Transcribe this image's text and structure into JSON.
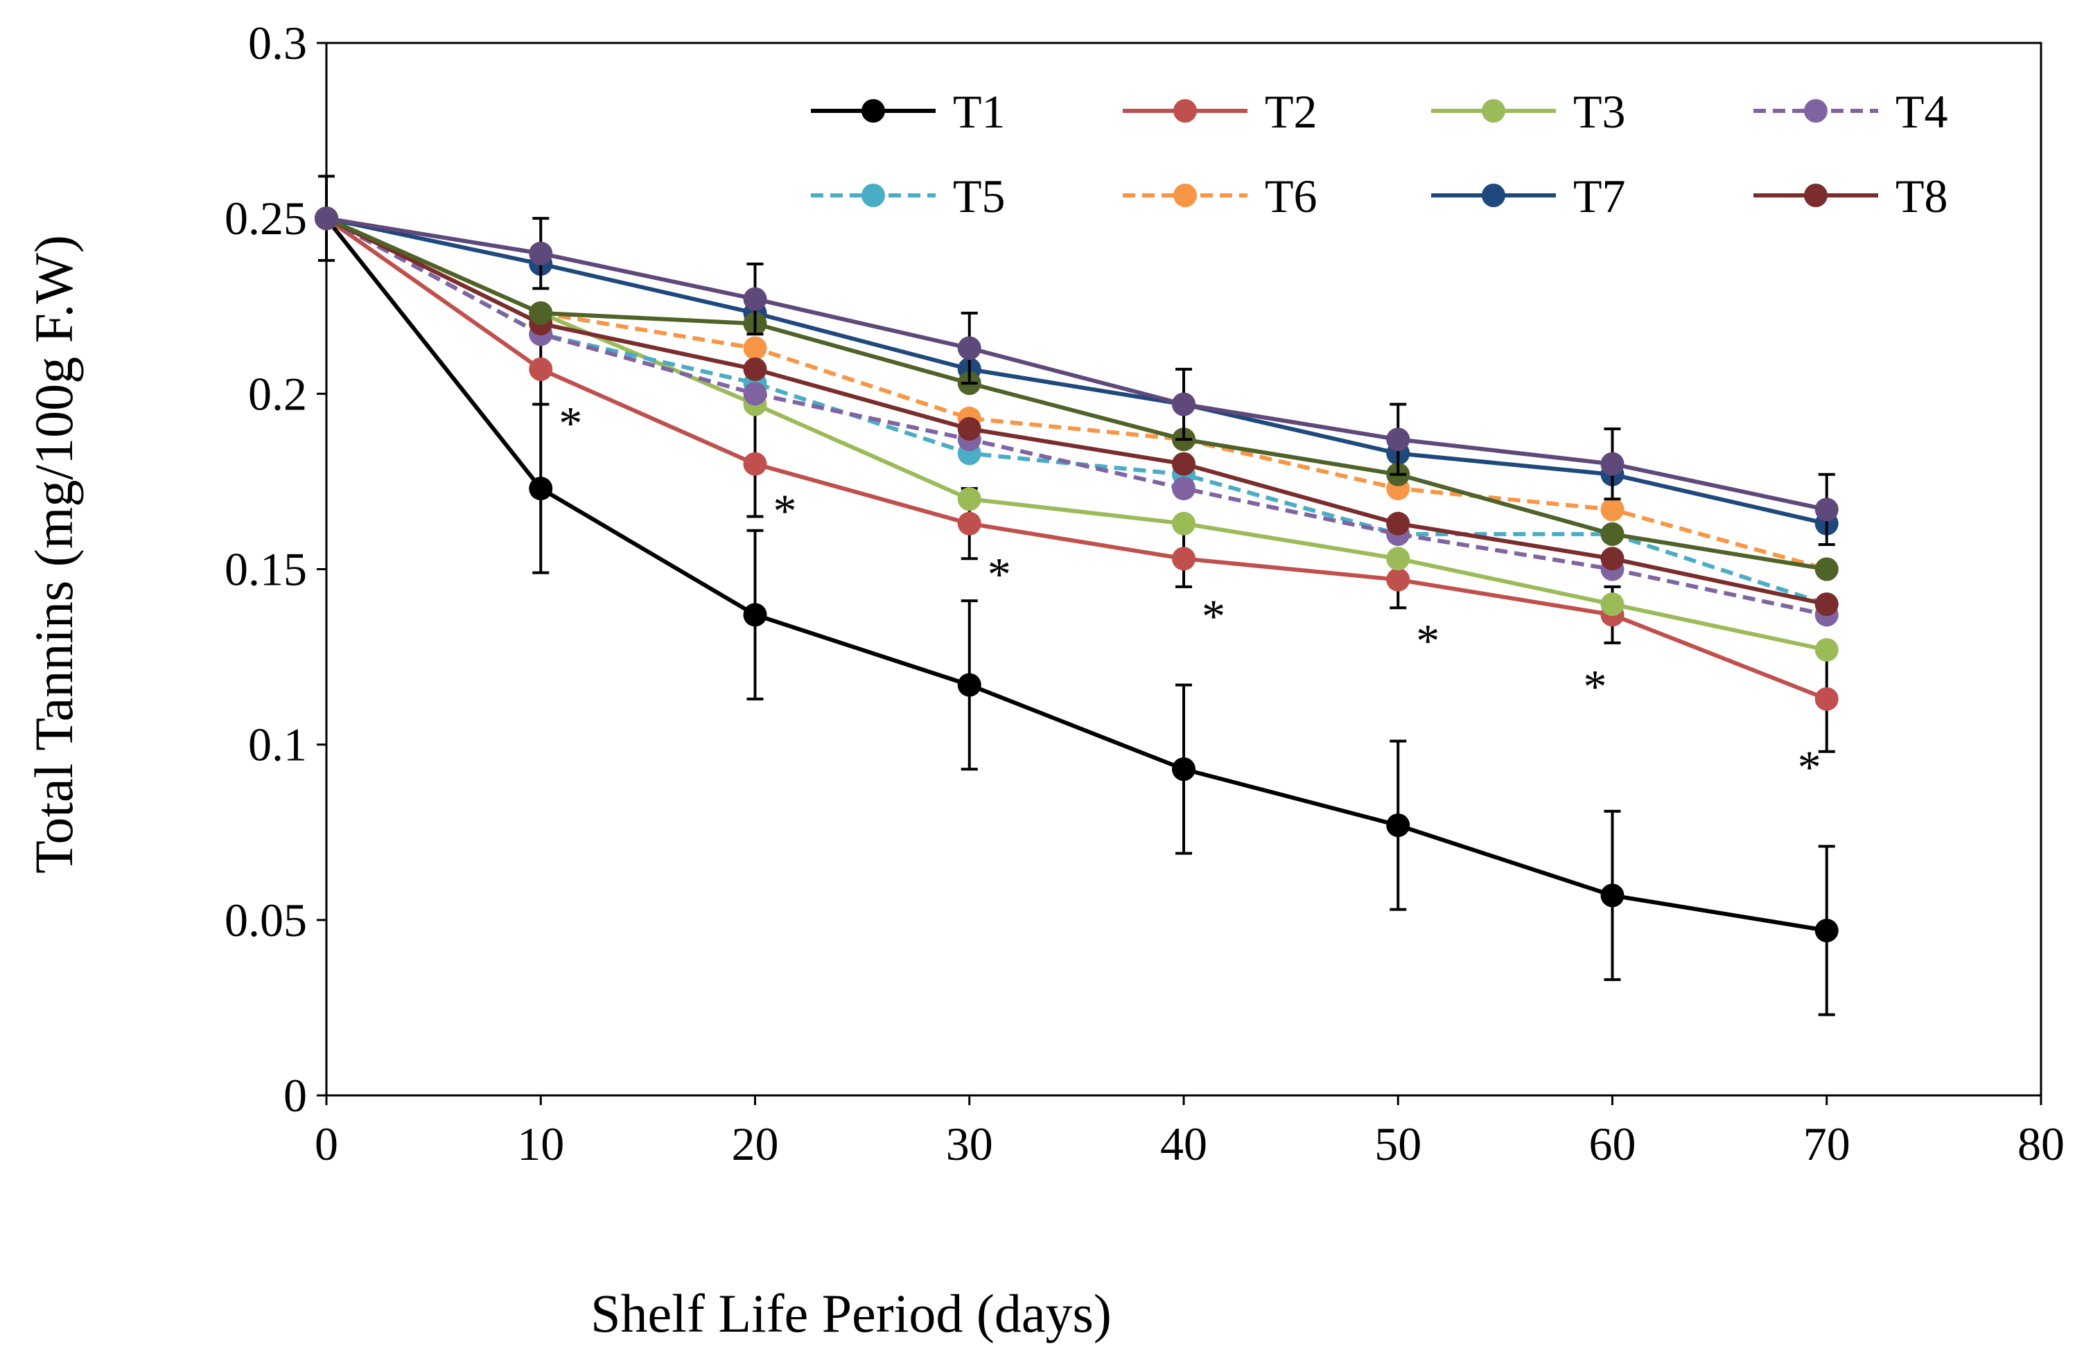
{
  "chart_data": {
    "type": "line",
    "title": "",
    "xlabel": "Shelf Life Period (days)",
    "ylabel": "Total Tannins (mg/100g F.W)",
    "xlim": [
      0,
      80
    ],
    "ylim": [
      0,
      0.3
    ],
    "xticks": [
      0,
      10,
      20,
      30,
      40,
      50,
      60,
      70,
      80
    ],
    "xtick_labels": [
      "0",
      "10",
      "20",
      "30",
      "40",
      "50",
      "60",
      "70",
      "80"
    ],
    "yticks": [
      0,
      0.05,
      0.1,
      0.15,
      0.2,
      0.25,
      0.3
    ],
    "ytick_labels": [
      "0",
      "0.05",
      "0.1",
      "0.15",
      "0.2",
      "0.25",
      "0.3"
    ],
    "grid": false,
    "legend_position": "top-right",
    "x": [
      0,
      10,
      20,
      30,
      40,
      50,
      60,
      70
    ],
    "series": [
      {
        "name": "T1",
        "color": "#000000",
        "dashed": false,
        "values": [
          0.25,
          0.173,
          0.137,
          0.117,
          0.093,
          0.077,
          0.057,
          0.047
        ],
        "error": [
          0.012,
          0.024,
          0.024,
          0.024,
          0.024,
          0.024,
          0.024,
          0.024
        ]
      },
      {
        "name": "T2",
        "color": "#C0504D",
        "dashed": false,
        "values": [
          0.25,
          0.207,
          0.18,
          0.163,
          0.153,
          0.147,
          0.137,
          0.113
        ],
        "error": [
          0,
          0.01,
          0.015,
          0.01,
          0.008,
          0.008,
          0.008,
          0.015
        ]
      },
      {
        "name": "T3",
        "color": "#9BBB59",
        "dashed": false,
        "values": [
          0.25,
          0.223,
          0.197,
          0.17,
          0.163,
          0.153,
          0.14,
          0.127
        ],
        "error": [
          0,
          0,
          0,
          0,
          0,
          0,
          0,
          0
        ]
      },
      {
        "name": "T4",
        "color": "#8064A2",
        "dashed": true,
        "values": [
          0.25,
          0.217,
          0.2,
          0.187,
          0.173,
          0.16,
          0.15,
          0.137
        ],
        "error": [
          0,
          0,
          0,
          0,
          0,
          0,
          0,
          0
        ]
      },
      {
        "name": "T5",
        "color": "#4BACC6",
        "dashed": true,
        "values": [
          0.25,
          0.217,
          0.203,
          0.183,
          0.177,
          0.16,
          0.16,
          0.14
        ],
        "error": [
          0,
          0,
          0,
          0,
          0,
          0,
          0,
          0
        ]
      },
      {
        "name": "T6",
        "color": "#F79646",
        "dashed": true,
        "values": [
          0.25,
          0.223,
          0.213,
          0.193,
          0.187,
          0.173,
          0.167,
          0.15
        ],
        "error": [
          0,
          0,
          0,
          0,
          0,
          0,
          0,
          0
        ]
      },
      {
        "name": "T7",
        "color": "#1F497D",
        "dashed": false,
        "values": [
          0.25,
          0.237,
          0.223,
          0.207,
          0.197,
          0.183,
          0.177,
          0.163
        ],
        "error": [
          0,
          0,
          0,
          0,
          0,
          0,
          0,
          0
        ]
      },
      {
        "name": "T8",
        "color": "#7B2C2C",
        "dashed": false,
        "values": [
          0.25,
          0.22,
          0.207,
          0.19,
          0.18,
          0.163,
          0.153,
          0.14
        ],
        "error": [
          0,
          0,
          0,
          0,
          0,
          0,
          0,
          0
        ]
      },
      {
        "name": "",
        "color": "#4F6228",
        "dashed": false,
        "values": [
          0.25,
          0.223,
          0.22,
          0.203,
          0.187,
          0.177,
          0.16,
          0.15
        ],
        "error": [
          0,
          0,
          0,
          0,
          0,
          0,
          0,
          0
        ]
      },
      {
        "name": "",
        "color": "#5F497A",
        "dashed": false,
        "values": [
          0.25,
          0.24,
          0.227,
          0.213,
          0.197,
          0.187,
          0.18,
          0.167
        ],
        "error": [
          0,
          0.01,
          0.01,
          0.01,
          0.01,
          0.01,
          0.01,
          0.01
        ]
      }
    ],
    "annotations": [
      {
        "text": "*",
        "x": 10,
        "y": 0.195
      },
      {
        "text": "*",
        "x": 20,
        "y": 0.17
      },
      {
        "text": "*",
        "x": 30,
        "y": 0.152
      },
      {
        "text": "*",
        "x": 40,
        "y": 0.14
      },
      {
        "text": "*",
        "x": 50,
        "y": 0.133
      },
      {
        "text": "*",
        "x": 60,
        "y": 0.12
      },
      {
        "text": "*",
        "x": 70,
        "y": 0.097
      }
    ]
  }
}
